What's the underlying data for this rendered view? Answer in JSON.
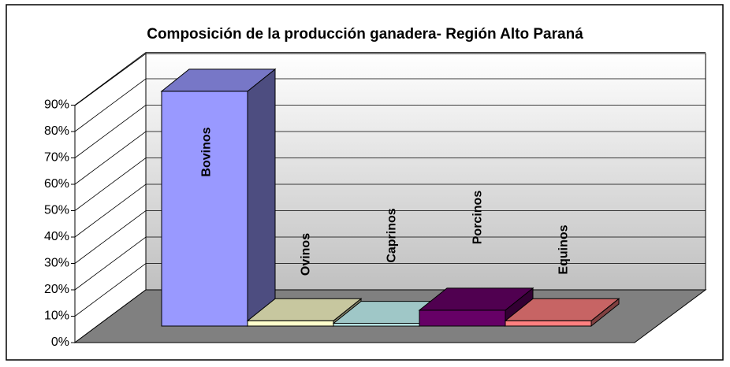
{
  "chart_data": {
    "type": "bar3d",
    "title": "Composición de la producción ganadera- Región Alto Paraná",
    "categories": [
      "Bovinos",
      "Ovinos",
      "Caprinos",
      "Porcinos",
      "Equinos"
    ],
    "values": [
      89,
      2,
      1,
      6,
      2
    ],
    "colors": [
      "#9999ff",
      "#ffffcc",
      "#ccffff",
      "#660066",
      "#ff8080"
    ],
    "ylim": [
      0,
      90
    ],
    "yticks": [
      {
        "value": 0,
        "label": "0%"
      },
      {
        "value": 10,
        "label": "10%"
      },
      {
        "value": 20,
        "label": "20%"
      },
      {
        "value": 30,
        "label": "30%"
      },
      {
        "value": 40,
        "label": "40%"
      },
      {
        "value": 50,
        "label": "50%"
      },
      {
        "value": 60,
        "label": "60%"
      },
      {
        "value": 70,
        "label": "70%"
      },
      {
        "value": 80,
        "label": "80%"
      },
      {
        "value": 90,
        "label": "90%"
      }
    ],
    "grid": true
  }
}
